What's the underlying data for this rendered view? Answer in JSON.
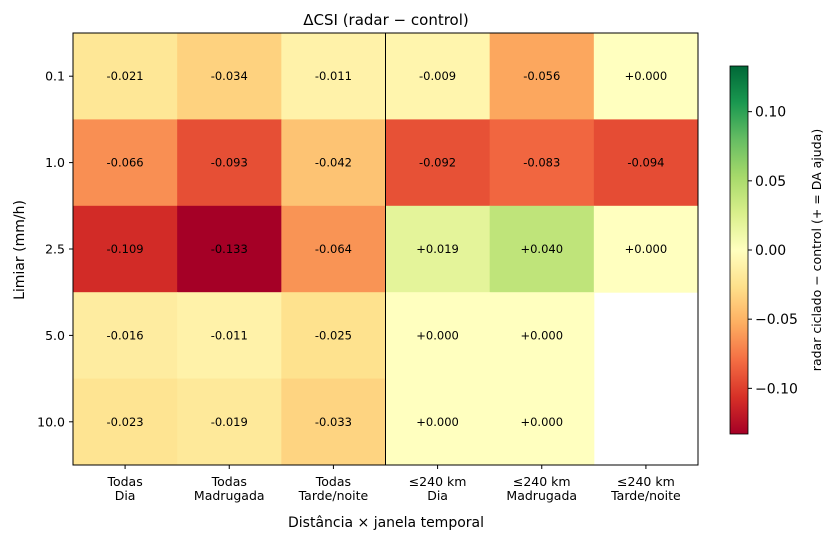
{
  "chart_data": {
    "type": "heatmap",
    "title": "ΔCSI  (radar − control)",
    "xlabel": "Distância × janela temporal",
    "ylabel": "Limiar (mm/h)",
    "x_categories": [
      [
        "Todas",
        "Dia"
      ],
      [
        "Todas",
        "Madrugada"
      ],
      [
        "Todas",
        "Tarde/noite"
      ],
      [
        "≤240 km",
        "Dia"
      ],
      [
        "≤240 km",
        "Madrugada"
      ],
      [
        "≤240 km",
        "Tarde/noite"
      ]
    ],
    "y_categories": [
      "0.1",
      "1.0",
      "2.5",
      "5.0",
      "10.0"
    ],
    "values": [
      [
        -0.021,
        -0.034,
        -0.011,
        -0.009,
        -0.056,
        0.0
      ],
      [
        -0.066,
        -0.093,
        -0.042,
        -0.092,
        -0.083,
        -0.094
      ],
      [
        -0.109,
        -0.133,
        -0.064,
        0.019,
        0.04,
        0.0
      ],
      [
        -0.016,
        -0.011,
        -0.025,
        0.0,
        0.0,
        null
      ],
      [
        -0.023,
        -0.019,
        -0.033,
        0.0,
        0.0,
        null
      ]
    ],
    "cell_labels": [
      [
        "-0.021",
        "-0.034",
        "-0.011",
        "-0.009",
        "-0.056",
        "+0.000"
      ],
      [
        "-0.066",
        "-0.093",
        "-0.042",
        "-0.092",
        "-0.083",
        "-0.094"
      ],
      [
        "-0.109",
        "-0.133",
        "-0.064",
        "+0.019",
        "+0.040",
        "+0.000"
      ],
      [
        "-0.016",
        "-0.011",
        "-0.025",
        "+0.000",
        "+0.000",
        ""
      ],
      [
        "-0.023",
        "-0.019",
        "-0.033",
        "+0.000",
        "+0.000",
        ""
      ]
    ],
    "colorscale": "RdYlGn",
    "vmin": -0.133,
    "vmax": 0.133,
    "colorbar": {
      "label": "radar ciclado − control  (+ = DA ajuda)",
      "ticks": [
        0.1,
        0.05,
        0.0,
        -0.05,
        -0.1
      ],
      "tick_labels": [
        "0.10",
        "0.05",
        "0.00",
        "−0.05",
        "−0.10"
      ]
    },
    "separator_after_column": 3
  }
}
